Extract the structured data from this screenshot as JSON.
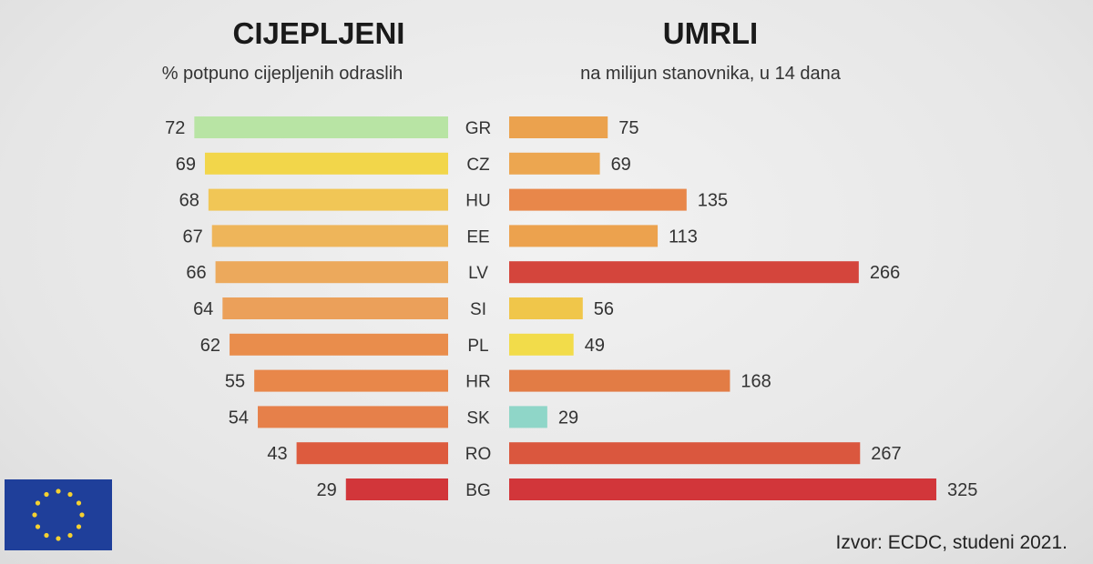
{
  "chart_data": [
    {
      "type": "bar",
      "orientation": "horizontal",
      "title": "CIJEPLJENI",
      "subtitle": "% potpuno cijepljenih odraslih",
      "categories": [
        "GR",
        "CZ",
        "HU",
        "EE",
        "LV",
        "SI",
        "PL",
        "HR",
        "SK",
        "RO",
        "BG"
      ],
      "values": [
        72,
        69,
        68,
        67,
        66,
        64,
        62,
        55,
        54,
        43,
        29
      ],
      "colors": [
        "#b8e4a4",
        "#f2d64a",
        "#f1c656",
        "#eeb55a",
        "#eca95c",
        "#eba05a",
        "#e98d4c",
        "#e8874a",
        "#e6804a",
        "#dd5b3e",
        "#d2363a"
      ],
      "grid": false
    },
    {
      "type": "bar",
      "orientation": "horizontal",
      "title": "UMRLI",
      "subtitle": "na milijun stanovnika, u 14 dana",
      "categories": [
        "GR",
        "CZ",
        "HU",
        "EE",
        "LV",
        "SI",
        "PL",
        "HR",
        "SK",
        "RO",
        "BG"
      ],
      "values": [
        75,
        69,
        135,
        113,
        266,
        56,
        49,
        168,
        29,
        267,
        325
      ],
      "colors": [
        "#eba24e",
        "#eca650",
        "#e8874a",
        "#eca24e",
        "#d4453c",
        "#f0c64a",
        "#f2dc4a",
        "#e27c45",
        "#8fd6c8",
        "#da573e",
        "#d2363a"
      ],
      "grid": false
    }
  ],
  "source": "Izvor: ECDC, studeni 2021.",
  "flag": {
    "name": "eu-flag",
    "background": "#1f3f9a",
    "stars": "#f5d130"
  }
}
